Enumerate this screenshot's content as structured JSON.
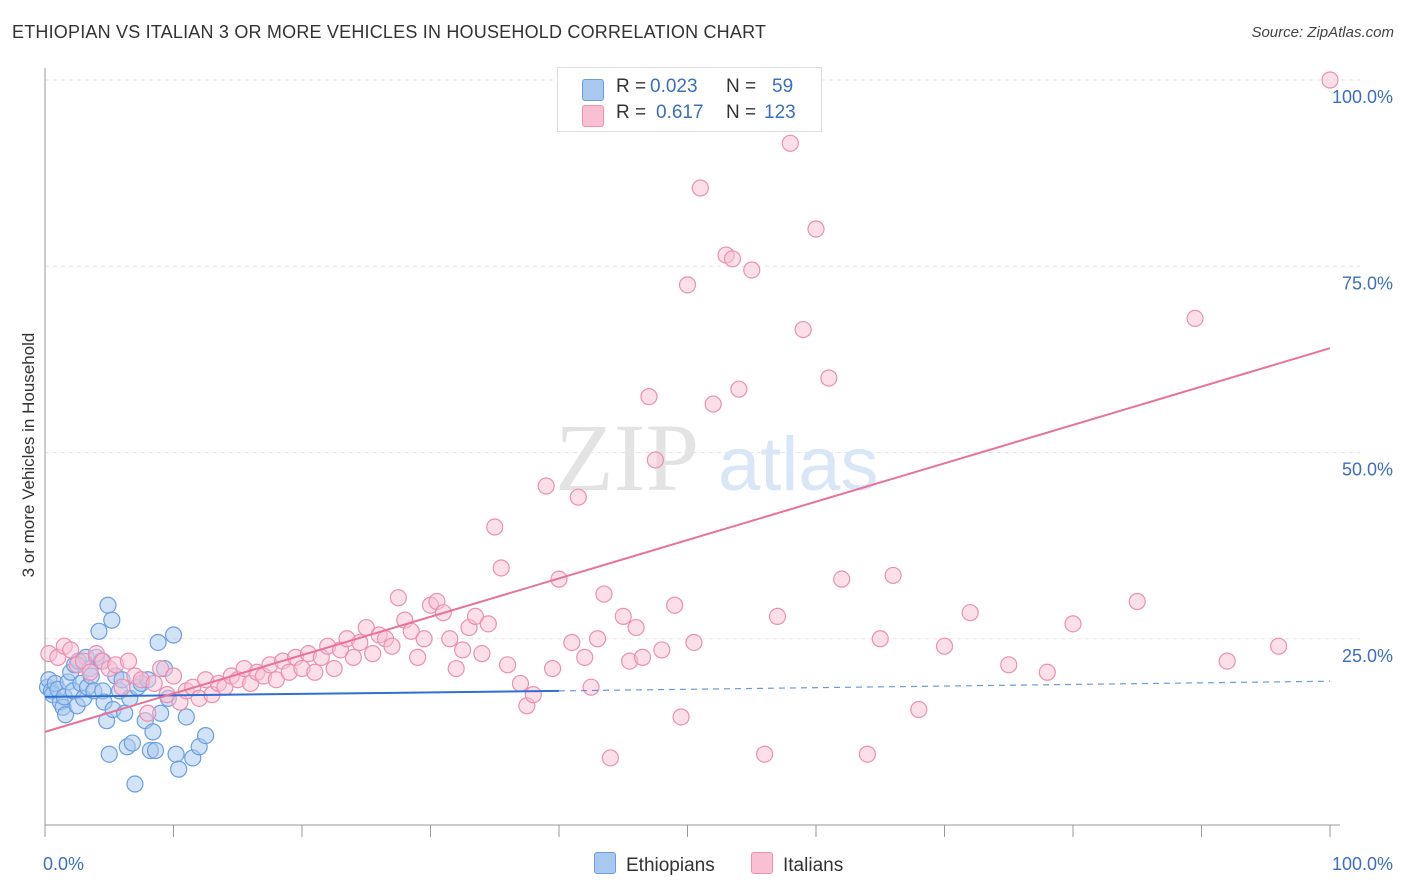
{
  "title": "ETHIOPIAN VS ITALIAN 3 OR MORE VEHICLES IN HOUSEHOLD CORRELATION CHART",
  "source": "Source: ZipAtlas.com",
  "watermark": {
    "zip": "ZIP",
    "atlas": "atlas"
  },
  "legend": {
    "rows": [
      {
        "r_label": "R =",
        "r_value": "0.023",
        "n_label": "N =",
        "n_value": "59",
        "color": "#a8c8f0",
        "border": "#6a9ee0"
      },
      {
        "r_label": "R =",
        "r_value": "0.617",
        "n_label": "N =",
        "n_value": "123",
        "color": "#f9c0d3",
        "border": "#ec8fb0"
      }
    ]
  },
  "bottom_legend": [
    "Ethiopians",
    "Italians"
  ],
  "chart_data": {
    "type": "scatter",
    "xlabel": "",
    "ylabel": "3 or more Vehicles in Household",
    "xlim": [
      0,
      100
    ],
    "ylim": [
      0,
      100
    ],
    "x_tick_labels": [
      "0.0%",
      "100.0%"
    ],
    "y_tick_labels": [
      "25.0%",
      "50.0%",
      "75.0%",
      "100.0%"
    ],
    "y_ticks": [
      25,
      50,
      75,
      100
    ],
    "grid": true,
    "series": [
      {
        "name": "Ethiopians",
        "color": "#6a9ee0",
        "fill": "#a8c8f0",
        "trend": {
          "x0": 0,
          "y0": 17.2,
          "x1": 40,
          "y1": 18.0,
          "x_dashed_end": 100,
          "y_dashed_end": 19.3,
          "color": "#2f6fcf"
        },
        "points": [
          [
            0.2,
            18.5
          ],
          [
            0.3,
            19.5
          ],
          [
            0.5,
            18.0
          ],
          [
            0.6,
            17.5
          ],
          [
            0.8,
            19.0
          ],
          [
            1.0,
            18.2
          ],
          [
            1.2,
            16.5
          ],
          [
            1.4,
            15.8
          ],
          [
            1.5,
            17.2
          ],
          [
            1.6,
            14.8
          ],
          [
            1.8,
            19.2
          ],
          [
            2.0,
            20.5
          ],
          [
            2.2,
            18.0
          ],
          [
            2.3,
            21.5
          ],
          [
            2.5,
            16.0
          ],
          [
            2.6,
            22.0
          ],
          [
            2.8,
            19.0
          ],
          [
            3.0,
            17.0
          ],
          [
            3.2,
            22.5
          ],
          [
            3.3,
            18.5
          ],
          [
            3.5,
            21.0
          ],
          [
            3.6,
            20.0
          ],
          [
            3.8,
            18.0
          ],
          [
            4.0,
            22.5
          ],
          [
            4.2,
            26.0
          ],
          [
            4.4,
            22.0
          ],
          [
            4.5,
            18.0
          ],
          [
            4.6,
            16.5
          ],
          [
            4.8,
            14.0
          ],
          [
            4.9,
            29.5
          ],
          [
            5.0,
            9.5
          ],
          [
            5.2,
            27.5
          ],
          [
            5.3,
            15.5
          ],
          [
            5.5,
            20.0
          ],
          [
            5.8,
            18.0
          ],
          [
            6.0,
            19.5
          ],
          [
            6.2,
            15.0
          ],
          [
            6.4,
            10.5
          ],
          [
            6.6,
            17.0
          ],
          [
            6.8,
            11.0
          ],
          [
            7.0,
            5.5
          ],
          [
            7.2,
            18.5
          ],
          [
            7.5,
            19.0
          ],
          [
            7.8,
            14.0
          ],
          [
            8.0,
            19.5
          ],
          [
            8.2,
            10.0
          ],
          [
            8.4,
            12.5
          ],
          [
            8.6,
            10.0
          ],
          [
            8.8,
            24.5
          ],
          [
            9.0,
            15.0
          ],
          [
            9.3,
            21.0
          ],
          [
            9.6,
            17.0
          ],
          [
            10.0,
            25.5
          ],
          [
            10.2,
            9.5
          ],
          [
            10.4,
            7.5
          ],
          [
            11.0,
            14.5
          ],
          [
            11.5,
            9.0
          ],
          [
            12.0,
            10.5
          ],
          [
            12.5,
            12.0
          ]
        ]
      },
      {
        "name": "Italians",
        "color": "#ec8fb0",
        "fill": "#f9c0d3",
        "trend": {
          "x0": 0,
          "y0": 12.5,
          "x1": 100,
          "y1": 64.0,
          "color": "#e8729a"
        },
        "points": [
          [
            0.3,
            23.0
          ],
          [
            1.0,
            22.5
          ],
          [
            1.5,
            24.0
          ],
          [
            2.0,
            23.5
          ],
          [
            2.5,
            21.5
          ],
          [
            3.0,
            22.0
          ],
          [
            3.5,
            20.5
          ],
          [
            4.0,
            23.0
          ],
          [
            4.5,
            22.0
          ],
          [
            5.0,
            21.0
          ],
          [
            5.5,
            21.5
          ],
          [
            6.0,
            18.5
          ],
          [
            6.5,
            22.0
          ],
          [
            7.0,
            20.0
          ],
          [
            7.5,
            19.5
          ],
          [
            8.0,
            15.0
          ],
          [
            8.5,
            19.0
          ],
          [
            9.0,
            21.0
          ],
          [
            9.5,
            17.5
          ],
          [
            10.0,
            20.0
          ],
          [
            10.5,
            16.5
          ],
          [
            11.0,
            18.0
          ],
          [
            11.5,
            18.5
          ],
          [
            12.0,
            17.0
          ],
          [
            12.5,
            19.5
          ],
          [
            13.0,
            17.5
          ],
          [
            13.5,
            19.0
          ],
          [
            14.0,
            18.5
          ],
          [
            14.5,
            20.0
          ],
          [
            15.0,
            19.5
          ],
          [
            15.5,
            21.0
          ],
          [
            16.0,
            19.0
          ],
          [
            16.5,
            20.5
          ],
          [
            17.0,
            20.0
          ],
          [
            17.5,
            21.5
          ],
          [
            18.0,
            19.5
          ],
          [
            18.5,
            22.0
          ],
          [
            19.0,
            20.5
          ],
          [
            19.5,
            22.5
          ],
          [
            20.0,
            21.0
          ],
          [
            20.5,
            23.0
          ],
          [
            21.0,
            20.5
          ],
          [
            21.5,
            22.5
          ],
          [
            22.0,
            24.0
          ],
          [
            22.5,
            21.0
          ],
          [
            23.0,
            23.5
          ],
          [
            23.5,
            25.0
          ],
          [
            24.0,
            22.5
          ],
          [
            24.5,
            24.5
          ],
          [
            25.0,
            26.5
          ],
          [
            25.5,
            23.0
          ],
          [
            26.0,
            25.5
          ],
          [
            26.5,
            25.0
          ],
          [
            27.0,
            24.0
          ],
          [
            27.5,
            30.5
          ],
          [
            28.0,
            27.5
          ],
          [
            28.5,
            26.0
          ],
          [
            29.0,
            22.5
          ],
          [
            29.5,
            25.0
          ],
          [
            30.0,
            29.5
          ],
          [
            30.5,
            30.0
          ],
          [
            31.0,
            28.5
          ],
          [
            31.5,
            25.0
          ],
          [
            32.0,
            21.0
          ],
          [
            32.5,
            23.5
          ],
          [
            33.0,
            26.5
          ],
          [
            33.5,
            28.0
          ],
          [
            34.0,
            23.0
          ],
          [
            34.5,
            27.0
          ],
          [
            35.0,
            40.0
          ],
          [
            35.5,
            34.5
          ],
          [
            36.0,
            21.5
          ],
          [
            37.0,
            19.0
          ],
          [
            37.5,
            16.0
          ],
          [
            38.0,
            17.5
          ],
          [
            39.0,
            45.5
          ],
          [
            39.5,
            21.0
          ],
          [
            40.0,
            33.0
          ],
          [
            41.0,
            24.5
          ],
          [
            41.5,
            44.0
          ],
          [
            42.0,
            22.5
          ],
          [
            42.5,
            18.5
          ],
          [
            43.0,
            25.0
          ],
          [
            43.5,
            31.0
          ],
          [
            44.0,
            9.0
          ],
          [
            45.0,
            28.0
          ],
          [
            45.5,
            22.0
          ],
          [
            46.0,
            26.5
          ],
          [
            46.5,
            22.5
          ],
          [
            47.0,
            57.5
          ],
          [
            47.5,
            49.0
          ],
          [
            48.0,
            23.5
          ],
          [
            49.0,
            29.5
          ],
          [
            49.5,
            14.5
          ],
          [
            50.0,
            72.5
          ],
          [
            50.5,
            24.5
          ],
          [
            51.0,
            85.5
          ],
          [
            52.0,
            56.5
          ],
          [
            53.0,
            76.5
          ],
          [
            53.5,
            76.0
          ],
          [
            54.0,
            58.5
          ],
          [
            55.0,
            74.5
          ],
          [
            56.0,
            9.5
          ],
          [
            57.0,
            28.0
          ],
          [
            58.0,
            91.5
          ],
          [
            59.0,
            66.5
          ],
          [
            60.0,
            80.0
          ],
          [
            61.0,
            60.0
          ],
          [
            62.0,
            33.0
          ],
          [
            64.0,
            9.5
          ],
          [
            65.0,
            25.0
          ],
          [
            66.0,
            33.5
          ],
          [
            68.0,
            15.5
          ],
          [
            70.0,
            24.0
          ],
          [
            72.0,
            28.5
          ],
          [
            75.0,
            21.5
          ],
          [
            78.0,
            20.5
          ],
          [
            80.0,
            27.0
          ],
          [
            85.0,
            30.0
          ],
          [
            89.5,
            68.0
          ],
          [
            92.0,
            22.0
          ],
          [
            96.0,
            24.0
          ],
          [
            100.0,
            100.0
          ]
        ]
      }
    ]
  }
}
